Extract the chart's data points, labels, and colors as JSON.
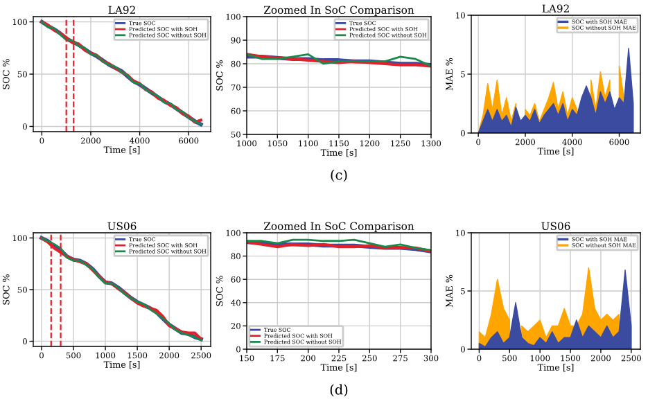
{
  "chart_data": [
    {
      "type": "line",
      "title": "LA92",
      "xlabel": "Time [s]",
      "ylabel": "SOC %",
      "xlim": [
        -350,
        6900
      ],
      "ylim": [
        -5,
        105
      ],
      "xticks": [
        0,
        2000,
        4000,
        6000
      ],
      "yticks": [
        0,
        50,
        100
      ],
      "grid": true,
      "legend": "top right",
      "x": [
        0,
        250,
        500,
        750,
        1000,
        1250,
        1500,
        1750,
        2000,
        2250,
        2500,
        2750,
        3000,
        3250,
        3500,
        3750,
        4000,
        4250,
        4500,
        4750,
        5000,
        5250,
        5500,
        5750,
        6000,
        6250,
        6500
      ],
      "series": [
        {
          "name": "True SOC",
          "color": "#3b4ba0",
          "values": [
            100,
            96,
            93,
            89,
            84,
            81,
            78,
            74,
            70,
            67,
            63,
            59,
            56,
            53,
            48,
            43,
            40,
            36,
            32,
            28,
            24,
            21,
            17,
            13,
            9,
            5,
            2
          ]
        },
        {
          "name": "Predicted SOC with SOH",
          "color": "#e0202a",
          "values": [
            100,
            97,
            92,
            89,
            85,
            80,
            79,
            73,
            70,
            68,
            62,
            60,
            56,
            52,
            49,
            43,
            41,
            35,
            33,
            27,
            25,
            20,
            18,
            12,
            10,
            4,
            6
          ]
        },
        {
          "name": "Predicted SOC without SOH",
          "color": "#1a8a4a",
          "values": [
            100,
            95,
            94,
            88,
            83,
            82,
            77,
            75,
            69,
            68,
            62,
            59,
            57,
            52,
            49,
            42,
            41,
            35,
            32,
            29,
            23,
            22,
            16,
            14,
            8,
            5,
            2
          ]
        }
      ],
      "ref_lines": [
        {
          "axis": "x",
          "value": 1000,
          "color": "#e0202a",
          "line_style": "dashed"
        },
        {
          "axis": "x",
          "value": 1300,
          "color": "#e0202a",
          "line_style": "dashed"
        }
      ]
    },
    {
      "type": "line",
      "title": "Zoomed In SoC Comparison",
      "xlabel": "Time [s]",
      "ylabel": "SOC %",
      "xlim": [
        1000,
        1300
      ],
      "ylim": [
        50,
        100
      ],
      "xticks": [
        1000,
        1050,
        1100,
        1150,
        1200,
        1250,
        1300
      ],
      "yticks": [
        50,
        60,
        70,
        80,
        90,
        100
      ],
      "grid": true,
      "legend": "top right",
      "annotations": [
        "(c)"
      ],
      "x": [
        1000,
        1025,
        1050,
        1075,
        1100,
        1125,
        1150,
        1175,
        1200,
        1225,
        1250,
        1275,
        1300
      ],
      "series": [
        {
          "name": "True SOC",
          "color": "#3b4ba0",
          "values": [
            83,
            83,
            82.5,
            82,
            82,
            81.5,
            81.5,
            81,
            81,
            80.5,
            80,
            80,
            79.5
          ]
        },
        {
          "name": "Predicted SOC with SOH",
          "color": "#e0202a",
          "values": [
            84,
            83,
            82.5,
            82,
            81.5,
            81,
            80.5,
            81,
            80.5,
            80,
            79.5,
            79.5,
            79
          ]
        },
        {
          "name": "Predicted SOC without SOH",
          "color": "#1a8a4a",
          "values": [
            84,
            82,
            82,
            83,
            84,
            80,
            81,
            81,
            81,
            81,
            83,
            82,
            79
          ]
        }
      ]
    },
    {
      "type": "area",
      "title": "LA92",
      "xlabel": "Time [s]",
      "ylabel": "MAE %",
      "xlim": [
        -300,
        6900
      ],
      "ylim": [
        0,
        10
      ],
      "xticks": [
        0,
        2000,
        4000,
        6000
      ],
      "yticks": [
        0,
        5,
        10
      ],
      "grid": true,
      "legend": "top right",
      "x": [
        0,
        200,
        400,
        600,
        800,
        1000,
        1200,
        1400,
        1600,
        1800,
        2000,
        2200,
        2400,
        2600,
        2800,
        3000,
        3200,
        3400,
        3600,
        3800,
        4000,
        4200,
        4400,
        4600,
        4800,
        5000,
        5200,
        5400,
        5600,
        5800,
        6000,
        6200,
        6400,
        6600
      ],
      "series": [
        {
          "name": "SOC with SOH MAE",
          "color": "#3b4ba0",
          "values": [
            0,
            1,
            2,
            1,
            2,
            1,
            1.5,
            0.5,
            2.2,
            1,
            1.5,
            1,
            2,
            0.8,
            1.5,
            2,
            2.5,
            1.5,
            2.5,
            1,
            2,
            1.5,
            3,
            4,
            3,
            1.5,
            3.5,
            2.5,
            3.5,
            2,
            3,
            2.5,
            7.2,
            2.5
          ]
        },
        {
          "name": "SOC without SOH MAE",
          "color": "#ffa500",
          "values": [
            0,
            1.5,
            4.2,
            2,
            4.5,
            1.5,
            3,
            1,
            2.5,
            null,
            2,
            1.5,
            2.5,
            1,
            2,
            3,
            4.3,
            2,
            3.5,
            1.5,
            3,
            2,
            null,
            null,
            4.5,
            2,
            5.2,
            3,
            4.5,
            null,
            5.7,
            3,
            null,
            null
          ]
        }
      ]
    },
    {
      "type": "line",
      "title": "US06",
      "xlabel": "Time [s]",
      "ylabel": "SOC %",
      "xlim": [
        -130,
        2650
      ],
      "ylim": [
        -5,
        105
      ],
      "xticks": [
        0,
        500,
        1000,
        1500,
        2000,
        2500
      ],
      "yticks": [
        0,
        50,
        100
      ],
      "grid": true,
      "legend": "top right",
      "x": [
        0,
        100,
        200,
        300,
        400,
        500,
        600,
        700,
        800,
        900,
        1000,
        1100,
        1200,
        1300,
        1400,
        1500,
        1600,
        1700,
        1800,
        1900,
        2000,
        2100,
        2200,
        2300,
        2400,
        2500
      ],
      "series": [
        {
          "name": "True SOC",
          "color": "#3b4ba0",
          "values": [
            100,
            97,
            92,
            88,
            82,
            79,
            78,
            75,
            70,
            63,
            57,
            56,
            52,
            47,
            42,
            38,
            35,
            32,
            28,
            22,
            16,
            12,
            8,
            7,
            4,
            2
          ]
        },
        {
          "name": "Predicted SOC with SOH",
          "color": "#e0202a",
          "values": [
            100,
            96,
            90,
            86,
            82,
            79,
            77,
            75,
            69,
            63,
            57,
            56,
            51,
            47,
            42,
            37,
            34,
            32,
            30,
            24,
            15,
            12,
            9,
            8,
            8,
            2
          ]
        },
        {
          "name": "Predicted SOC without SOH",
          "color": "#1a8a4a",
          "values": [
            100,
            97,
            94,
            90,
            81,
            78,
            78,
            74,
            70,
            62,
            56,
            56,
            52,
            46,
            42,
            38,
            36,
            31,
            27,
            22,
            17,
            11,
            8,
            6,
            4,
            1
          ]
        }
      ],
      "ref_lines": [
        {
          "axis": "x",
          "value": 150,
          "color": "#e0202a",
          "line_style": "dashed"
        },
        {
          "axis": "x",
          "value": 300,
          "color": "#e0202a",
          "line_style": "dashed"
        }
      ]
    },
    {
      "type": "line",
      "title": "Zoomed In SoC Comparison",
      "xlabel": "Time [s]",
      "ylabel": "SOC %",
      "xlim": [
        150,
        300
      ],
      "ylim": [
        0,
        100
      ],
      "xticks": [
        150,
        175,
        200,
        225,
        250,
        275,
        300
      ],
      "yticks": [
        0,
        20,
        40,
        60,
        80,
        100
      ],
      "grid": true,
      "legend": "lower left",
      "annotations": [
        "(d)"
      ],
      "x": [
        150,
        162.5,
        175,
        187.5,
        200,
        212.5,
        225,
        237.5,
        250,
        262.5,
        275,
        287.5,
        300
      ],
      "series": [
        {
          "name": "True SOC",
          "color": "#3b4ba0",
          "values": [
            92,
            91,
            90,
            90,
            90,
            89,
            89,
            89,
            88,
            87,
            87,
            86,
            84
          ]
        },
        {
          "name": "Predicted SOC with SOH",
          "color": "#e0202a",
          "values": [
            92,
            90,
            88,
            90,
            89,
            90,
            88,
            88,
            89,
            87,
            87,
            87,
            84
          ]
        },
        {
          "name": "Predicted SOC without SOH",
          "color": "#1a8a4a",
          "values": [
            93,
            93,
            91,
            94,
            94,
            93,
            93,
            94,
            91,
            88,
            90,
            87,
            85
          ]
        }
      ]
    },
    {
      "type": "area",
      "title": "US06",
      "xlabel": "Time [s]",
      "ylabel": "MAE %",
      "xlim": [
        -130,
        2650
      ],
      "ylim": [
        0,
        10
      ],
      "xticks": [
        0,
        500,
        1000,
        1500,
        2000,
        2500
      ],
      "yticks": [
        0,
        5,
        10
      ],
      "grid": true,
      "legend": "top right",
      "x": [
        0,
        100,
        200,
        300,
        400,
        500,
        600,
        700,
        800,
        900,
        1000,
        1100,
        1200,
        1300,
        1400,
        1500,
        1600,
        1700,
        1800,
        1900,
        2000,
        2100,
        2200,
        2300,
        2400,
        2500
      ],
      "series": [
        {
          "name": "SOC with SOH MAE",
          "color": "#3b4ba0",
          "values": [
            0.5,
            0.2,
            1,
            1.5,
            0.5,
            1,
            4,
            1,
            0.5,
            0.3,
            1,
            0.5,
            1.5,
            0.5,
            1,
            1,
            2.5,
            1,
            2,
            1.5,
            1,
            2,
            1,
            1.5,
            6.8,
            2
          ]
        },
        {
          "name": "SOC without SOH MAE",
          "color": "#ffa500",
          "values": [
            1.5,
            1,
            3,
            6,
            3.5,
            2.5,
            null,
            2,
            1.5,
            2,
            2.5,
            1,
            2,
            2,
            3.5,
            2,
            2,
            3,
            7,
            3.5,
            2.5,
            3,
            2.5,
            3,
            null,
            null
          ]
        }
      ]
    }
  ]
}
